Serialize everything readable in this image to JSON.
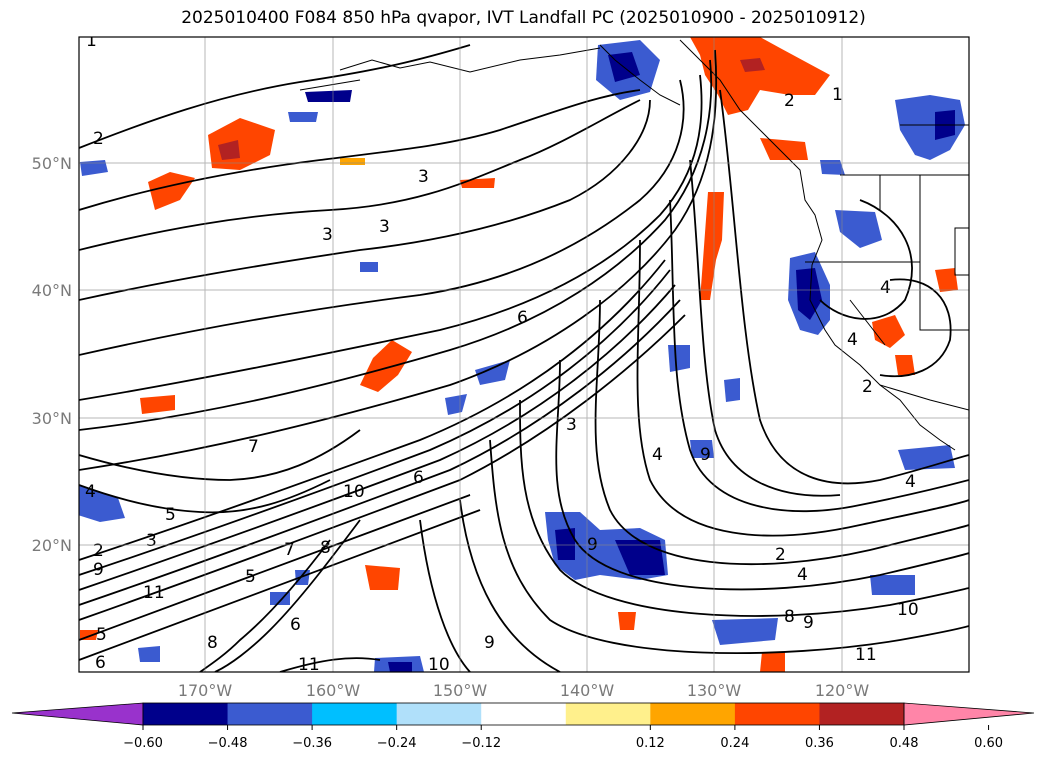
{
  "title": "2025010400 F084 850 hPa qvapor, IVT Landfall PC (2025010900 - 2025010912)",
  "lat_labels": [
    "50°N",
    "40°N",
    "30°N",
    "20°N"
  ],
  "lon_labels": [
    "170°W",
    "160°W",
    "150°W",
    "140°W",
    "130°W",
    "120°W"
  ],
  "colorbar": {
    "ticks": [
      "−0.60",
      "−0.48",
      "−0.36",
      "−0.24",
      "−0.12",
      "0.12",
      "0.24",
      "0.36",
      "0.48",
      "0.60"
    ],
    "colors": [
      "#9932cc",
      "#00008b",
      "#3b5bd0",
      "#00bfff",
      "#b0e0fa",
      "#ffffff",
      "#fff08c",
      "#ffa500",
      "#ff4500",
      "#b22222",
      "#ff85a8"
    ]
  },
  "contour_labels": [
    "1",
    "2",
    "2",
    "3",
    "3",
    "3",
    "6",
    "7",
    "10",
    "6",
    "5",
    "3",
    "2",
    "9",
    "11",
    "8",
    "7",
    "6",
    "5",
    "11",
    "10",
    "9",
    "9",
    "9",
    "4",
    "3",
    "4",
    "2",
    "4",
    "8",
    "9",
    "10",
    "11",
    "4",
    "4",
    "2",
    "1",
    "4",
    "6",
    "8",
    "5"
  ]
}
